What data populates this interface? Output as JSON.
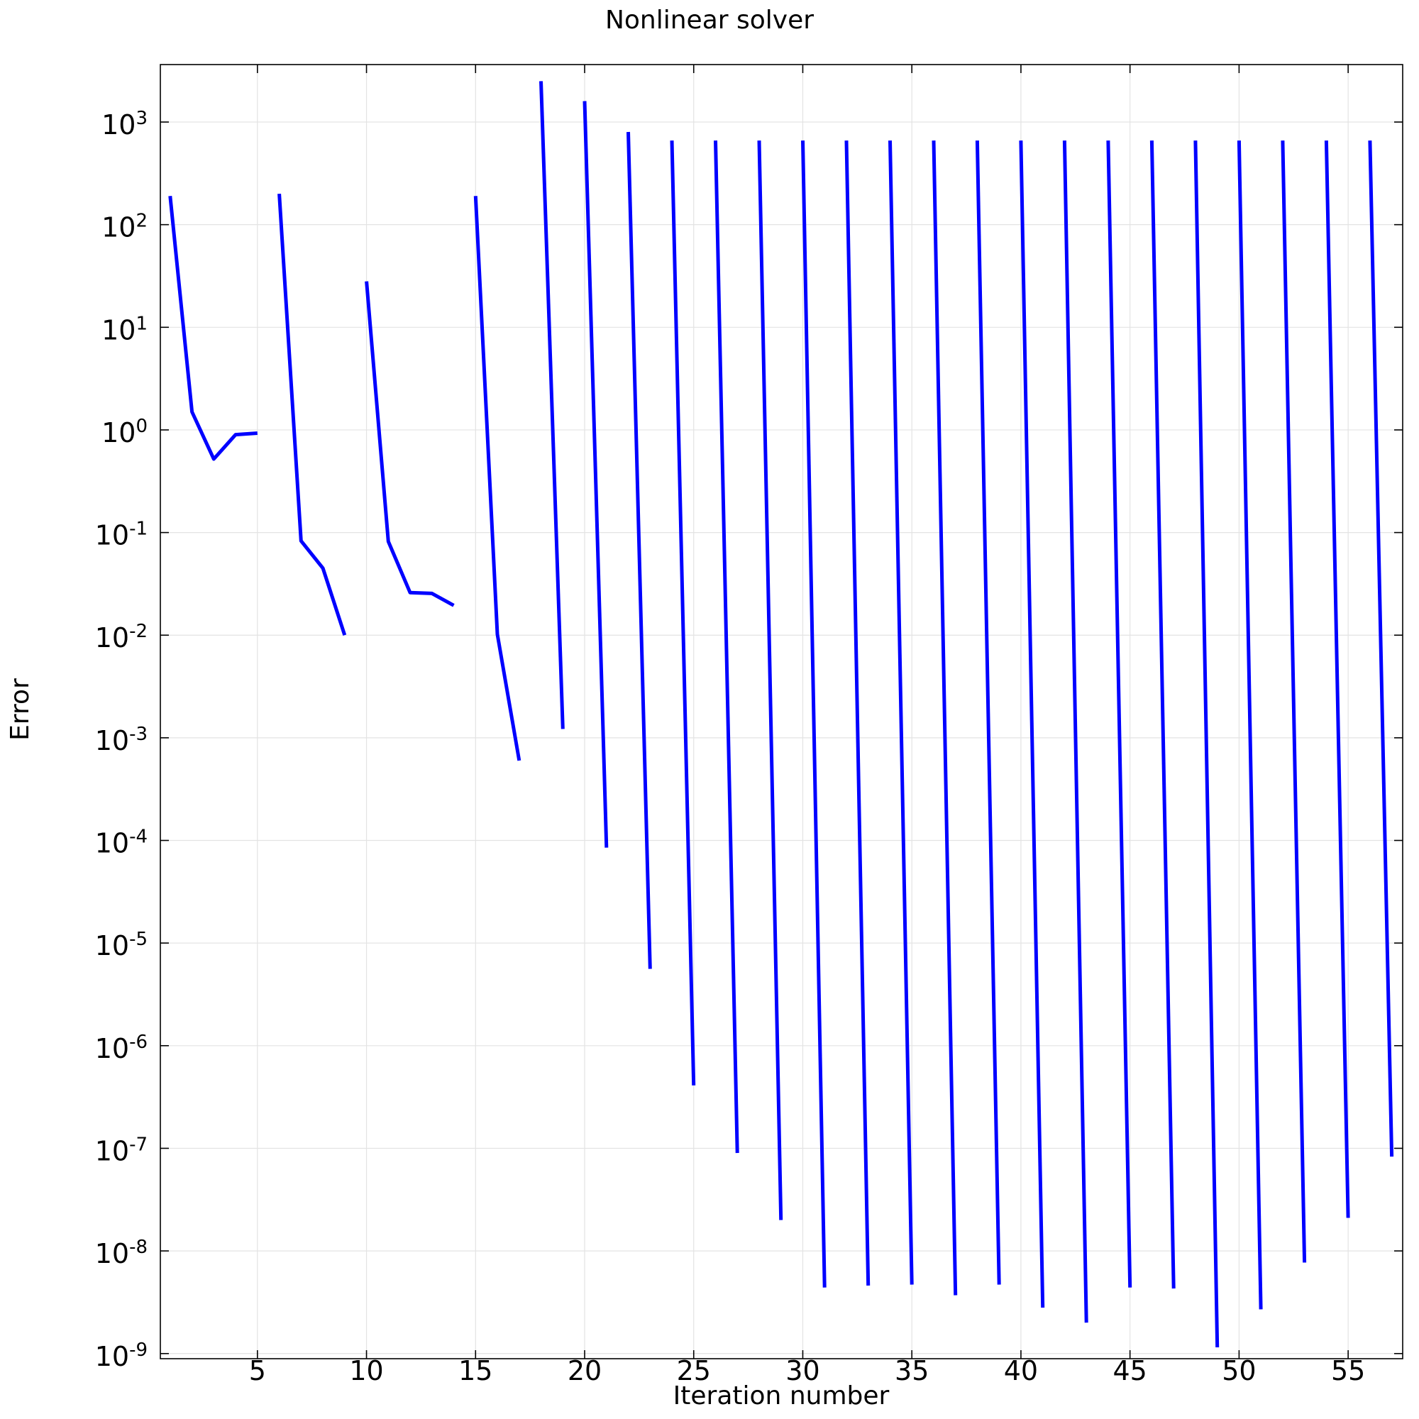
{
  "chart_data": {
    "type": "line",
    "title": "Nonlinear solver",
    "xlabel": "Iteration number",
    "ylabel": "Error",
    "yscale": "log",
    "xlim": [
      0.55,
      57.5
    ],
    "ylim_log10": [
      -9.05,
      3.56
    ],
    "x_ticks": [
      5,
      10,
      15,
      20,
      25,
      30,
      35,
      40,
      45,
      50,
      55
    ],
    "y_ticks": [
      {
        "base": "10",
        "exp": "3"
      },
      {
        "base": "10",
        "exp": "2"
      },
      {
        "base": "10",
        "exp": "1"
      },
      {
        "base": "10",
        "exp": "0"
      },
      {
        "base": "10",
        "exp": "-1"
      },
      {
        "base": "10",
        "exp": "-2"
      },
      {
        "base": "10",
        "exp": "-3"
      },
      {
        "base": "10",
        "exp": "-4"
      },
      {
        "base": "10",
        "exp": "-5"
      },
      {
        "base": "10",
        "exp": "-6"
      },
      {
        "base": "10",
        "exp": "-7"
      },
      {
        "base": "10",
        "exp": "-8"
      },
      {
        "base": "10",
        "exp": "-9"
      }
    ],
    "grid": true,
    "line_color": "#0000ff",
    "segments": [
      [
        [
          1,
          190
        ],
        [
          2,
          1.5
        ],
        [
          3,
          0.52
        ],
        [
          4,
          0.9
        ],
        [
          5,
          0.93
        ]
      ],
      [
        [
          6,
          200
        ],
        [
          7,
          0.083
        ],
        [
          8,
          0.045
        ],
        [
          9,
          0.01
        ]
      ],
      [
        [
          10,
          28
        ],
        [
          11,
          0.082
        ],
        [
          12,
          0.026
        ],
        [
          13,
          0.0255
        ],
        [
          14,
          0.0195
        ]
      ],
      [
        [
          15,
          190
        ],
        [
          16,
          0.0102
        ],
        [
          17,
          0.0006
        ]
      ],
      [
        [
          18,
          2500
        ],
        [
          19,
          0.00122
        ]
      ],
      [
        [
          20,
          1600
        ],
        [
          21,
          8.5e-05
        ]
      ],
      [
        [
          22,
          800
        ],
        [
          23,
          5.6e-06
        ]
      ],
      [
        [
          24,
          660
        ],
        [
          25,
          4.1e-07
        ]
      ],
      [
        [
          26,
          660
        ],
        [
          27,
          9e-08
        ]
      ],
      [
        [
          28,
          660
        ],
        [
          29,
          2e-08
        ]
      ],
      [
        [
          30,
          660
        ],
        [
          31,
          4.4e-09
        ]
      ],
      [
        [
          32,
          660
        ],
        [
          33,
          4.6e-09
        ]
      ],
      [
        [
          34,
          660
        ],
        [
          35,
          4.7e-09
        ]
      ],
      [
        [
          36,
          660
        ],
        [
          37,
          3.7e-09
        ]
      ],
      [
        [
          38,
          660
        ],
        [
          39,
          4.7e-09
        ]
      ],
      [
        [
          40,
          660
        ],
        [
          41,
          2.8e-09
        ]
      ],
      [
        [
          42,
          660
        ],
        [
          43,
          2e-09
        ]
      ],
      [
        [
          44,
          660
        ],
        [
          45,
          4.4e-09
        ]
      ],
      [
        [
          46,
          660
        ],
        [
          47,
          4.3e-09
        ]
      ],
      [
        [
          48,
          660
        ],
        [
          49,
          1.15e-09
        ]
      ],
      [
        [
          50,
          660
        ],
        [
          51,
          2.7e-09
        ]
      ],
      [
        [
          52,
          660
        ],
        [
          53,
          7.7e-09
        ]
      ],
      [
        [
          54,
          660
        ],
        [
          55,
          2.1e-08
        ]
      ],
      [
        [
          56,
          660
        ],
        [
          57,
          8.3e-08
        ]
      ]
    ]
  }
}
